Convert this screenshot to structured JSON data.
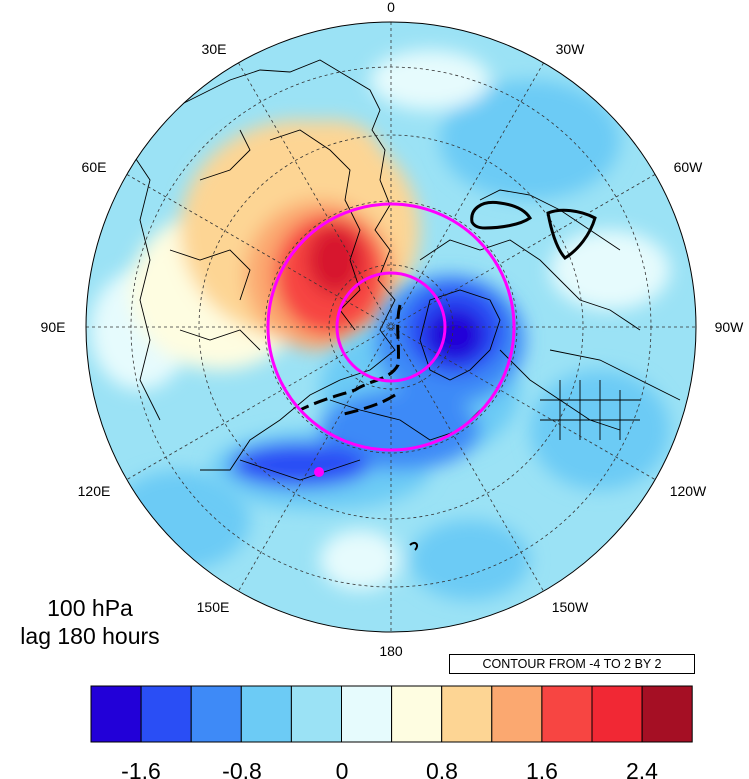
{
  "map": {
    "projection": "north-polar-stereographic",
    "lon_labels": [
      "0",
      "30W",
      "60W",
      "90W",
      "120W",
      "150W",
      "180",
      "150E",
      "120E",
      "90E",
      "60E",
      "30E"
    ],
    "marker_color": "#ff00ff",
    "circle_color": "#ff00ff"
  },
  "annotation": {
    "level": "100 hPa",
    "lag": "lag 180 hours",
    "contour_info": "CONTOUR FROM -4 TO 2 BY 2"
  },
  "colorbar": {
    "colors": [
      "#2200d8",
      "#2a4ef5",
      "#3e8af7",
      "#6ccbf5",
      "#9be2f5",
      "#e6fbfd",
      "#fefde1",
      "#fdd594",
      "#fba870",
      "#f74542",
      "#f12834",
      "#a50f24"
    ],
    "tick_labels": [
      "-1.6",
      "-0.8",
      "0",
      "0.8",
      "1.6",
      "2.4"
    ]
  }
}
